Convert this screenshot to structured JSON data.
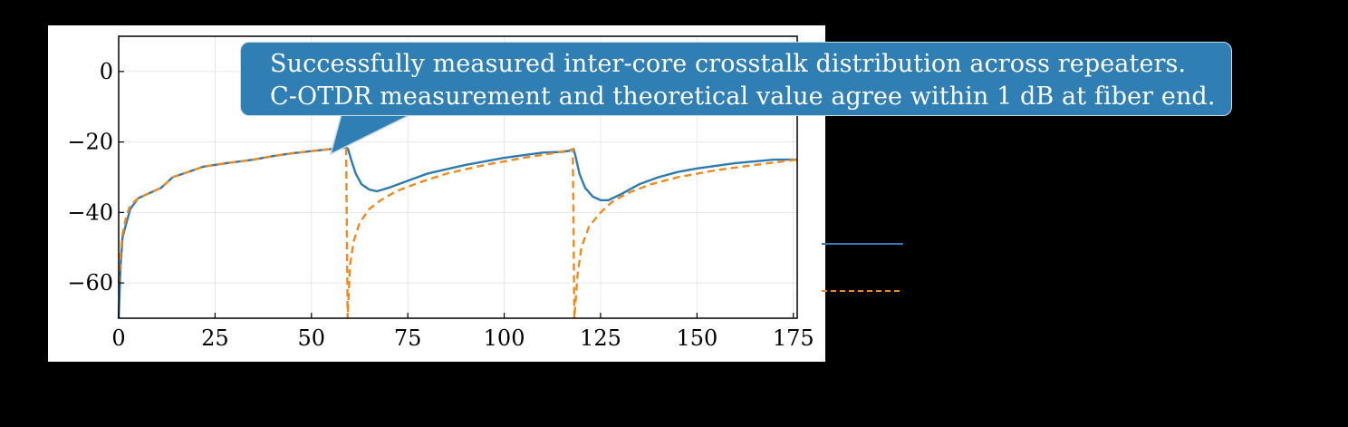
{
  "chart_data": {
    "type": "line",
    "title": "",
    "xlabel": "",
    "ylabel": "",
    "xlim": [
      0,
      176
    ],
    "ylim": [
      -70,
      10
    ],
    "x_ticks": [
      0,
      25,
      50,
      75,
      100,
      125,
      150,
      175
    ],
    "x_tick_labels": [
      "0",
      "25",
      "50",
      "75",
      "100",
      "125",
      "150",
      "175"
    ],
    "y_ticks": [
      0,
      -20,
      -40,
      -60
    ],
    "y_tick_labels": [
      "0",
      "−20",
      "−40",
      "−60"
    ],
    "grid": true,
    "series": [
      {
        "style": "solid",
        "color": "#2f7ab0",
        "points": [
          [
            0,
            -70
          ],
          [
            0.5,
            -55
          ],
          [
            1,
            -47
          ],
          [
            2,
            -43
          ],
          [
            3,
            -39
          ],
          [
            5,
            -36
          ],
          [
            8,
            -34.5
          ],
          [
            11,
            -33
          ],
          [
            14,
            -30
          ],
          [
            18,
            -28.5
          ],
          [
            22,
            -27
          ],
          [
            28,
            -26
          ],
          [
            35,
            -25
          ],
          [
            40,
            -24
          ],
          [
            45,
            -23.2
          ],
          [
            50,
            -22.6
          ],
          [
            55,
            -22
          ],
          [
            58,
            -21.7
          ],
          [
            59,
            -21.5
          ],
          [
            59.5,
            -22
          ],
          [
            60.3,
            -25
          ],
          [
            61.5,
            -29
          ],
          [
            63,
            -32
          ],
          [
            65,
            -33.5
          ],
          [
            67,
            -34
          ],
          [
            70,
            -33
          ],
          [
            75,
            -31
          ],
          [
            80,
            -29
          ],
          [
            90,
            -26.5
          ],
          [
            100,
            -24.5
          ],
          [
            110,
            -23
          ],
          [
            115,
            -22.8
          ],
          [
            117,
            -22.5
          ],
          [
            118,
            -22
          ],
          [
            118.5,
            -24
          ],
          [
            119.5,
            -29
          ],
          [
            121,
            -33
          ],
          [
            123,
            -35.5
          ],
          [
            125,
            -36.5
          ],
          [
            127,
            -36.5
          ],
          [
            130,
            -35
          ],
          [
            135,
            -32
          ],
          [
            140,
            -30
          ],
          [
            145,
            -28.5
          ],
          [
            150,
            -27.5
          ],
          [
            160,
            -26
          ],
          [
            170,
            -25
          ],
          [
            176,
            -25
          ]
        ]
      },
      {
        "style": "dashed",
        "color": "#f08a1e",
        "points": [
          [
            0,
            -60
          ],
          [
            0.5,
            -52
          ],
          [
            1,
            -46
          ],
          [
            2,
            -41
          ],
          [
            3,
            -38
          ],
          [
            5,
            -36
          ],
          [
            8,
            -34.5
          ],
          [
            11,
            -33
          ],
          [
            14,
            -30
          ],
          [
            18,
            -28.5
          ],
          [
            22,
            -27
          ],
          [
            28,
            -26
          ],
          [
            35,
            -25
          ],
          [
            40,
            -24
          ],
          [
            45,
            -23.2
          ],
          [
            50,
            -22.6
          ],
          [
            55,
            -22
          ],
          [
            59,
            -21.8
          ],
          [
            59.4,
            -70
          ],
          [
            60,
            -55
          ],
          [
            61,
            -48
          ],
          [
            62.5,
            -43
          ],
          [
            65,
            -39
          ],
          [
            68,
            -36.5
          ],
          [
            72,
            -34
          ],
          [
            78,
            -31.5
          ],
          [
            85,
            -29
          ],
          [
            95,
            -26.5
          ],
          [
            105,
            -24.5
          ],
          [
            112,
            -23.3
          ],
          [
            117,
            -22.3
          ],
          [
            117.8,
            -22
          ],
          [
            118.2,
            -70
          ],
          [
            119,
            -58
          ],
          [
            120,
            -50
          ],
          [
            122,
            -44
          ],
          [
            125,
            -40
          ],
          [
            128,
            -37
          ],
          [
            132,
            -34.5
          ],
          [
            138,
            -32
          ],
          [
            145,
            -30
          ],
          [
            155,
            -28
          ],
          [
            165,
            -26.5
          ],
          [
            176,
            -25
          ]
        ]
      }
    ]
  },
  "annotation": {
    "line1": "Successfully measured inter-core crosstalk distribution across repeaters.",
    "line2": "C-OTDR measurement and theoretical value agree within 1 dB at fiber end.",
    "color": "#2f7fb5"
  },
  "legend": {
    "entries": [
      {
        "style": "solid",
        "color": "#2f7ab0"
      },
      {
        "style": "dashed",
        "color": "#f08a1e"
      }
    ]
  }
}
